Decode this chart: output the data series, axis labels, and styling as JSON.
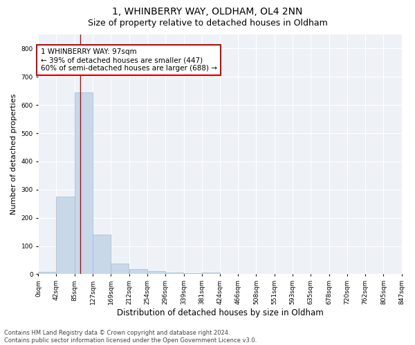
{
  "title": "1, WHINBERRY WAY, OLDHAM, OL4 2NN",
  "subtitle": "Size of property relative to detached houses in Oldham",
  "xlabel": "Distribution of detached houses by size in Oldham",
  "ylabel": "Number of detached properties",
  "bar_color": "#c8d8e8",
  "bar_edge_color": "#a0b8cc",
  "bg_color": "#eef2f7",
  "grid_color": "#ffffff",
  "red_line_x": 97,
  "annotation_text": "1 WHINBERRY WAY: 97sqm\n← 39% of detached houses are smaller (447)\n60% of semi-detached houses are larger (688) →",
  "annotation_box_color": "#ffffff",
  "annotation_edge_color": "#cc0000",
  "bin_edges": [
    0,
    42,
    85,
    127,
    169,
    212,
    254,
    296,
    339,
    381,
    424,
    466,
    508,
    551,
    593,
    635,
    678,
    720,
    762,
    805,
    847
  ],
  "bin_counts": [
    8,
    275,
    644,
    140,
    38,
    18,
    10,
    7,
    3,
    5,
    0,
    0,
    0,
    0,
    0,
    2,
    0,
    0,
    0,
    0
  ],
  "tick_labels": [
    "0sqm",
    "42sqm",
    "85sqm",
    "127sqm",
    "169sqm",
    "212sqm",
    "254sqm",
    "296sqm",
    "339sqm",
    "381sqm",
    "424sqm",
    "466sqm",
    "508sqm",
    "551sqm",
    "593sqm",
    "635sqm",
    "678sqm",
    "720sqm",
    "762sqm",
    "805sqm",
    "847sqm"
  ],
  "ylim": [
    0,
    850
  ],
  "yticks": [
    0,
    100,
    200,
    300,
    400,
    500,
    600,
    700,
    800
  ],
  "footer_text": "Contains HM Land Registry data © Crown copyright and database right 2024.\nContains public sector information licensed under the Open Government Licence v3.0.",
  "title_fontsize": 10,
  "subtitle_fontsize": 9,
  "xlabel_fontsize": 8.5,
  "ylabel_fontsize": 8,
  "tick_fontsize": 6.5,
  "annotation_fontsize": 7.5,
  "footer_fontsize": 6
}
